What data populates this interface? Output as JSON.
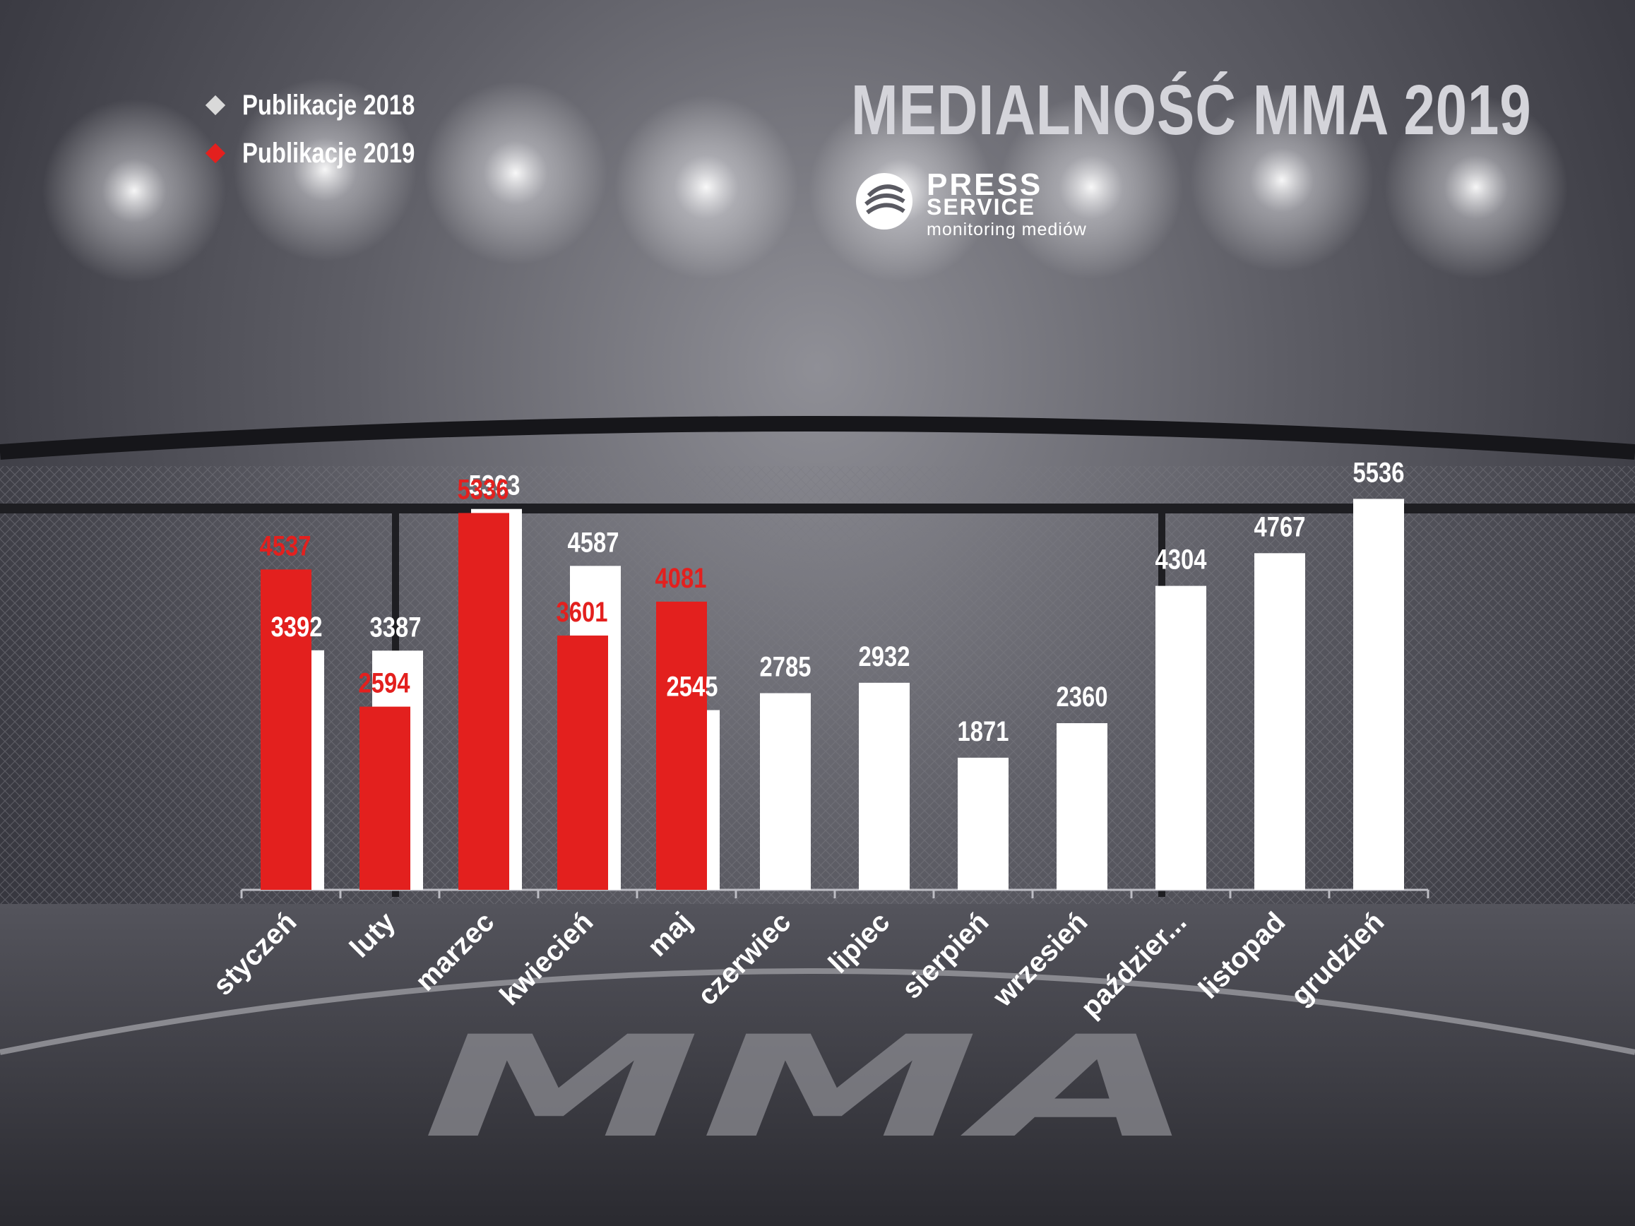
{
  "title": "MEDIALNOŚĆ MMA 2019",
  "logo": {
    "line1": "PRESS",
    "line2": "SERVICE",
    "line3": "monitoring mediów"
  },
  "watermark": "MMA",
  "legend": [
    {
      "label": "Publikacje 2018",
      "color": "#d9d9d9"
    },
    {
      "label": "Publikacje 2019",
      "color": "#e3201e"
    }
  ],
  "colors": {
    "bar2018": "#ffffff",
    "bar2019": "#e3201e",
    "label2019": "#e3201e",
    "label2018": "#ffffff"
  },
  "chart_data": {
    "type": "bar",
    "title": "MEDIALNOŚĆ MMA 2019",
    "categories": [
      "styczeń",
      "luty",
      "marzec",
      "kwiecień",
      "maj",
      "czerwiec",
      "lipiec",
      "sierpień",
      "wrzesień",
      "paździer...",
      "listopad",
      "grudzień"
    ],
    "series": [
      {
        "name": "Publikacje 2018",
        "values": [
          3392,
          3387,
          5393,
          4587,
          2545,
          2785,
          2932,
          1871,
          2360,
          4304,
          4767,
          5536
        ]
      },
      {
        "name": "Publikacje 2019",
        "values": [
          4537,
          2594,
          5336,
          3601,
          4081,
          null,
          null,
          null,
          null,
          null,
          null,
          null
        ]
      }
    ],
    "ylim": [
      0,
      6000
    ],
    "grid": false,
    "legend_position": "top-left"
  }
}
